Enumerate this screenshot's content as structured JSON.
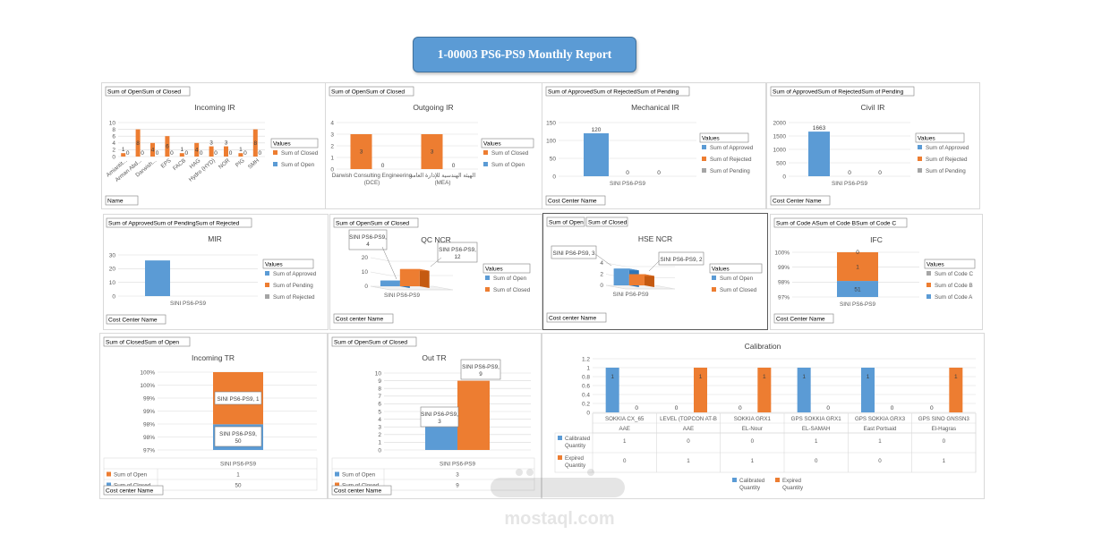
{
  "report_title": "1-00003 PS6-PS9 Monthly Report",
  "colors": {
    "blue": "#5b9bd5",
    "orange": "#ed7d31",
    "gray": "#a5a5a5",
    "title_bg": "#5b9bd5"
  },
  "watermark": {
    "brand": "mostaql.com"
  },
  "chart_data": [
    {
      "id": "incoming-ir",
      "type": "bar",
      "title": "Incoming IR",
      "field_button": "Sum of OpenSum of Closed",
      "axis_button": "Name",
      "legend_title": "Values",
      "categories": [
        "Amiantit...",
        "Arman Abd...",
        "Darwish...",
        "EPS",
        "FACB",
        "HAG",
        "Hydro (HYD)",
        "NOR",
        "PIG",
        "SMH"
      ],
      "series": [
        {
          "name": "Sum of Closed",
          "color": "#ed7d31",
          "values": [
            1,
            8,
            4,
            6,
            1,
            4,
            3,
            3,
            1,
            8
          ]
        },
        {
          "name": "Sum of Open",
          "color": "#5b9bd5",
          "values": [
            0,
            0,
            0,
            0,
            0,
            0,
            0,
            0,
            0,
            0
          ]
        }
      ],
      "ylim": [
        0,
        10
      ],
      "yticks": [
        0,
        2,
        4,
        6,
        8,
        10
      ]
    },
    {
      "id": "outgoing-ir",
      "type": "bar",
      "title": "Outgoing IR",
      "field_button": "Sum of OpenSum of Closed",
      "axis_button": "",
      "legend_title": "Values",
      "categories": [
        "Darwish Consulting Engineering (DCE)",
        "الهيئة الهندسية للإدارة العامة (MEA)"
      ],
      "series": [
        {
          "name": "Sum of Closed",
          "color": "#ed7d31",
          "values": [
            3,
            3
          ]
        },
        {
          "name": "Sum of Open",
          "color": "#5b9bd5",
          "values": [
            0,
            0
          ]
        }
      ],
      "ylim": [
        0,
        4
      ],
      "yticks": [
        0,
        1,
        2,
        3,
        4
      ]
    },
    {
      "id": "mechanical-ir",
      "type": "bar",
      "title": "Mechanical IR",
      "field_button": "Sum of ApprovedSum of RejectedSum of Pending",
      "axis_button": "Cost Center Name",
      "legend_title": "Values",
      "categories": [
        "SINI PS6-PS9"
      ],
      "series": [
        {
          "name": "Sum of Approved",
          "color": "#5b9bd5",
          "values": [
            120
          ]
        },
        {
          "name": "Sum of Rejected",
          "color": "#ed7d31",
          "values": [
            0
          ]
        },
        {
          "name": "Sum of Pending",
          "color": "#a5a5a5",
          "values": [
            0
          ]
        }
      ],
      "ylim": [
        0,
        150
      ],
      "yticks": [
        0,
        50,
        100,
        150
      ]
    },
    {
      "id": "civil-ir",
      "type": "bar",
      "title": "Civil IR",
      "field_button": "Sum of ApprovedSum of RejectedSum of Pending",
      "axis_button": "Cost Center Name",
      "legend_title": "Values",
      "categories": [
        "SINI PS6-PS9"
      ],
      "series": [
        {
          "name": "Sum of Approved",
          "color": "#5b9bd5",
          "values": [
            1663
          ]
        },
        {
          "name": "Sum of Rejected",
          "color": "#ed7d31",
          "values": [
            0
          ]
        },
        {
          "name": "Sum of Pending",
          "color": "#a5a5a5",
          "values": [
            0
          ]
        }
      ],
      "ylim": [
        0,
        2000
      ],
      "yticks": [
        0,
        500,
        1000,
        1500,
        2000
      ]
    },
    {
      "id": "mir",
      "type": "bar",
      "title": "MIR",
      "field_button": "Sum of ApprovedSum of PendingSum of Rejected",
      "axis_button": "Cost Center Name",
      "legend_title": "Values",
      "categories": [
        "SINI PS6-PS9"
      ],
      "series": [
        {
          "name": "Sum of Approved",
          "color": "#5b9bd5",
          "values": [
            26
          ]
        },
        {
          "name": "Sum of Pending",
          "color": "#ed7d31",
          "values": [
            0
          ]
        },
        {
          "name": "Sum of Rejected",
          "color": "#a5a5a5",
          "values": [
            0
          ]
        }
      ],
      "ylim": [
        0,
        30
      ],
      "yticks": [
        0,
        10,
        20,
        30
      ]
    },
    {
      "id": "qc-ncr",
      "type": "bar3d",
      "title": "QC NCR",
      "field_button": "Sum of OpenSum of Closed",
      "axis_button": "Cost center Name",
      "legend_title": "Values",
      "categories": [
        "SINI PS6-PS9"
      ],
      "series": [
        {
          "name": "Sum of Open",
          "color": "#5b9bd5",
          "values": [
            4
          ],
          "callout": "SINI PS6-PS9, 4"
        },
        {
          "name": "Sum of Closed",
          "color": "#ed7d31",
          "values": [
            12
          ],
          "callout": "SINI PS6-PS9, 12"
        }
      ],
      "ylim": [
        0,
        20
      ],
      "yticks": [
        0,
        10,
        20
      ]
    },
    {
      "id": "hse-ncr",
      "type": "bar3d",
      "title": "HSE NCR",
      "field_buttons": [
        "Sum of Open",
        "Sum of Closed"
      ],
      "axis_button": "Cost center Name",
      "legend_title": "Values",
      "categories": [
        "SINI PS6-PS9"
      ],
      "series": [
        {
          "name": "Sum of Open",
          "color": "#5b9bd5",
          "values": [
            3
          ],
          "callout": "SINI PS6-PS9, 3"
        },
        {
          "name": "Sum of Closed",
          "color": "#ed7d31",
          "values": [
            2
          ],
          "callout": "SINI PS6-PS9, 2"
        }
      ],
      "ylim": [
        0,
        4
      ],
      "yticks": [
        0,
        2,
        4
      ]
    },
    {
      "id": "ifc",
      "type": "stacked-bar",
      "title": "IFC",
      "field_button": "Sum of Code ASum of Code BSum of Code C",
      "axis_button": "Cost Center Name",
      "legend_title": "Values",
      "categories": [
        "SINI PS6-PS9"
      ],
      "series": [
        {
          "name": "Sum of Code C",
          "color": "#a5a5a5",
          "values": [
            0
          ]
        },
        {
          "name": "Sum of Code B",
          "color": "#ed7d31",
          "values": [
            1
          ]
        },
        {
          "name": "Sum of Code A",
          "color": "#5b9bd5",
          "values": [
            51
          ]
        }
      ],
      "ytick_labels": [
        "97%",
        "98%",
        "99%",
        "100%"
      ]
    },
    {
      "id": "incoming-tr",
      "type": "stacked-bar",
      "title": "Incoming TR",
      "field_button": "Sum of ClosedSum of Open",
      "axis_button": "Cost center Name",
      "categories": [
        "SINI PS6-PS9"
      ],
      "series": [
        {
          "name": "Sum of Open",
          "color": "#ed7d31",
          "values": [
            1
          ],
          "callout": "SINI PS6-PS9, 1"
        },
        {
          "name": "Sum of Closed",
          "color": "#5b9bd5",
          "values": [
            50
          ],
          "callout": "SINI PS6-PS9, 50"
        }
      ],
      "ytick_labels": [
        "97%",
        "98%",
        "98%",
        "99%",
        "99%",
        "100%",
        "100%"
      ]
    },
    {
      "id": "out-tr",
      "type": "bar",
      "title": "Out TR",
      "field_button": "Sum of OpenSum of Closed",
      "axis_button": "Cost center Name",
      "categories": [
        "SINI PS6-PS9"
      ],
      "series": [
        {
          "name": "Sum of Open",
          "color": "#5b9bd5",
          "values": [
            3
          ],
          "callout": "SINI PS6-PS9, 3"
        },
        {
          "name": "Sum of Closed",
          "color": "#ed7d31",
          "values": [
            9
          ],
          "callout": "SINI PS6-PS9, 9"
        }
      ],
      "ylim": [
        0,
        10
      ],
      "yticks": [
        0,
        1,
        2,
        3,
        4,
        5,
        6,
        7,
        8,
        9,
        10
      ]
    },
    {
      "id": "calibration",
      "type": "bar",
      "title": "Calibration",
      "categories": [
        {
          "name": "SOKKIA CX_65",
          "group": "AAE"
        },
        {
          "name": "LEVEL (TOPCON AT-B",
          "group": "AAE"
        },
        {
          "name": "SOKKIA GRX1",
          "group": "EL-Nour"
        },
        {
          "name": "GPS SOKKIA GRX1",
          "group": "EL-SAMAH"
        },
        {
          "name": "GPS SOKKIA GRX3",
          "group": "East Portsaid"
        },
        {
          "name": "GPS SINO GNSSN3",
          "group": "El-Hagras"
        }
      ],
      "series": [
        {
          "name": "Calibrated Quantity",
          "color": "#5b9bd5",
          "values": [
            1,
            0,
            0,
            1,
            1,
            0
          ]
        },
        {
          "name": "Expired Quantity",
          "color": "#ed7d31",
          "values": [
            0,
            1,
            1,
            0,
            0,
            1
          ]
        }
      ],
      "ylim": [
        0,
        1.2
      ],
      "yticks": [
        0,
        0.2,
        0.4,
        0.6,
        0.8,
        1,
        1.2
      ]
    }
  ]
}
